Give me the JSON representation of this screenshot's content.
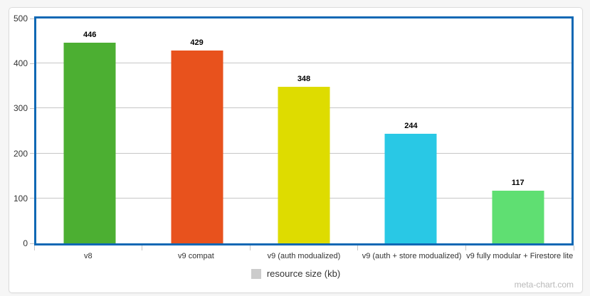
{
  "watermark": "meta-chart.com",
  "menu": {
    "icon": "hamburger-icon"
  },
  "chart_data": {
    "type": "bar",
    "title": "",
    "categories": [
      "v8",
      "v9 compat",
      "v9 (auth modualized)",
      "v9 (auth + store modualized)",
      "v9 fully modular + Firestore lite"
    ],
    "values": [
      446,
      429,
      348,
      244,
      117
    ],
    "bar_colors": [
      "#4caf32",
      "#e8521d",
      "#dedc00",
      "#29c8e5",
      "#5fdf72"
    ],
    "legend_label": "resource size (kb)",
    "legend_swatch_color": "#cccccc",
    "legend_position": "bottom",
    "xlabel": "",
    "ylabel": "",
    "ylim": [
      0,
      500
    ],
    "yticks": [
      0,
      100,
      200,
      300,
      400,
      500
    ],
    "grid": true,
    "value_labels": true,
    "plot_border_color": "#1068b4"
  }
}
